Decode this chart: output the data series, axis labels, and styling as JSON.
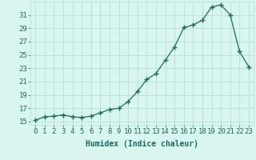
{
  "x": [
    0,
    1,
    2,
    3,
    4,
    5,
    6,
    7,
    8,
    9,
    10,
    11,
    12,
    13,
    14,
    15,
    16,
    17,
    18,
    19,
    20,
    21,
    22,
    23
  ],
  "y": [
    15.2,
    15.7,
    15.8,
    16.0,
    15.7,
    15.6,
    15.8,
    16.3,
    16.8,
    17.0,
    18.0,
    19.5,
    21.3,
    22.2,
    24.2,
    26.2,
    29.1,
    29.5,
    30.2,
    32.2,
    32.5,
    31.0,
    25.5,
    23.2
  ],
  "line_color": "#1a6b5a",
  "marker": "+",
  "marker_size": 4,
  "marker_linewidth": 1.0,
  "bg_color": "#d8f5f0",
  "grid_color": "#b8ddd8",
  "xlabel": "Humidex (Indice chaleur)",
  "xlim": [
    -0.5,
    23.5
  ],
  "ylim": [
    14.5,
    33.0
  ],
  "yticks": [
    15,
    17,
    19,
    21,
    23,
    25,
    27,
    29,
    31
  ],
  "xtick_labels": [
    "0",
    "1",
    "2",
    "3",
    "4",
    "5",
    "6",
    "7",
    "8",
    "9",
    "10",
    "11",
    "12",
    "13",
    "14",
    "15",
    "16",
    "17",
    "18",
    "19",
    "20",
    "21",
    "22",
    "23"
  ],
  "tick_color": "#1a6b5a",
  "label_fontsize": 7.0,
  "tick_fontsize": 6.5,
  "line_width": 0.9
}
